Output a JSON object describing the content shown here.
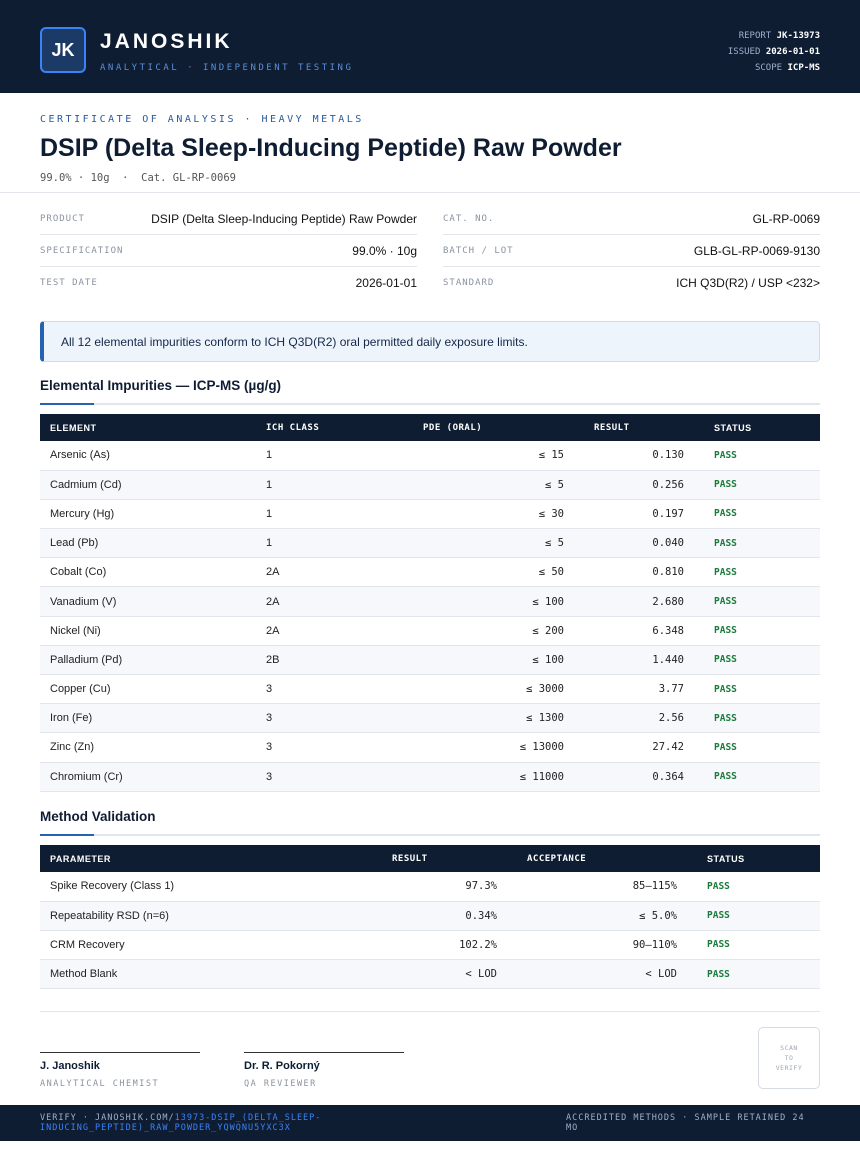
{
  "header": {
    "logo": "JK",
    "brand": "JANOSHIK",
    "tagline": "ANALYTICAL · INDEPENDENT TESTING",
    "meta": [
      {
        "label": "REPORT",
        "value": "JK-13973"
      },
      {
        "label": "ISSUED",
        "value": "2026-01-01"
      },
      {
        "label": "SCOPE",
        "value": "ICP-MS"
      }
    ]
  },
  "title_block": {
    "kicker": "CERTIFICATE OF ANALYSIS · HEAVY METALS",
    "title": "DSIP (Delta Sleep-Inducing Peptide) Raw Powder",
    "subtitle": "99.0% · 10g  ·  Cat. GL-RP-0069"
  },
  "info": {
    "left": [
      [
        "PRODUCT",
        "DSIP (Delta Sleep-Inducing Peptide) Raw Powder"
      ],
      [
        "SPECIFICATION",
        "99.0% · 10g"
      ],
      [
        "TEST DATE",
        "2026-01-01"
      ]
    ],
    "right": [
      [
        "CAT. NO.",
        "GL-RP-0069"
      ],
      [
        "BATCH / LOT",
        "GLB-GL-RP-0069-9130"
      ],
      [
        "STANDARD",
        "ICH Q3D(R2) / USP <232>"
      ]
    ]
  },
  "notice": "All 12 elemental impurities conform to ICH Q3D(R2) oral permitted daily exposure limits.",
  "impurities": {
    "heading": "Elemental Impurities — ICP-MS (µg/g)",
    "columns": [
      "ELEMENT",
      "ICH CLASS",
      "PDE (ORAL)",
      "RESULT",
      "STATUS"
    ],
    "rows": [
      [
        "Arsenic (As)",
        "1",
        "≤ 15",
        "0.130",
        "PASS"
      ],
      [
        "Cadmium (Cd)",
        "1",
        "≤ 5",
        "0.256",
        "PASS"
      ],
      [
        "Mercury (Hg)",
        "1",
        "≤ 30",
        "0.197",
        "PASS"
      ],
      [
        "Lead (Pb)",
        "1",
        "≤ 5",
        "0.040",
        "PASS"
      ],
      [
        "Cobalt (Co)",
        "2A",
        "≤ 50",
        "0.810",
        "PASS"
      ],
      [
        "Vanadium (V)",
        "2A",
        "≤ 100",
        "2.680",
        "PASS"
      ],
      [
        "Nickel (Ni)",
        "2A",
        "≤ 200",
        "6.348",
        "PASS"
      ],
      [
        "Palladium (Pd)",
        "2B",
        "≤ 100",
        "1.440",
        "PASS"
      ],
      [
        "Copper (Cu)",
        "3",
        "≤ 3000",
        "3.77",
        "PASS"
      ],
      [
        "Iron (Fe)",
        "3",
        "≤ 1300",
        "2.56",
        "PASS"
      ],
      [
        "Zinc (Zn)",
        "3",
        "≤ 13000",
        "27.42",
        "PASS"
      ],
      [
        "Chromium (Cr)",
        "3",
        "≤ 11000",
        "0.364",
        "PASS"
      ]
    ]
  },
  "validation": {
    "heading": "Method Validation",
    "columns": [
      "PARAMETER",
      "RESULT",
      "ACCEPTANCE",
      "STATUS"
    ],
    "rows": [
      [
        "Spike Recovery (Class 1)",
        "97.3%",
        "85–115%",
        "PASS"
      ],
      [
        "Repeatability RSD (n=6)",
        "0.34%",
        "≤ 5.0%",
        "PASS"
      ],
      [
        "CRM Recovery",
        "102.2%",
        "90–110%",
        "PASS"
      ],
      [
        "Method Blank",
        "< LOD",
        "< LOD",
        "PASS"
      ]
    ]
  },
  "signatures": [
    {
      "name": "J. Janoshik",
      "role": "ANALYTICAL CHEMIST"
    },
    {
      "name": "Dr. R. Pokorný",
      "role": "QA REVIEWER"
    }
  ],
  "scan": [
    "SCAN",
    "TO",
    "VERIFY"
  ],
  "footer": {
    "verify": "VERIFY · JANOSHIK.COM/",
    "link": "13973-DSIP_(DELTA_SLEEP-INDUCING_PEPTIDE)_RAW_POWDER_YQWQNU5YXC3X",
    "right": "ACCREDITED METHODS · SAMPLE RETAINED 24 MO"
  }
}
